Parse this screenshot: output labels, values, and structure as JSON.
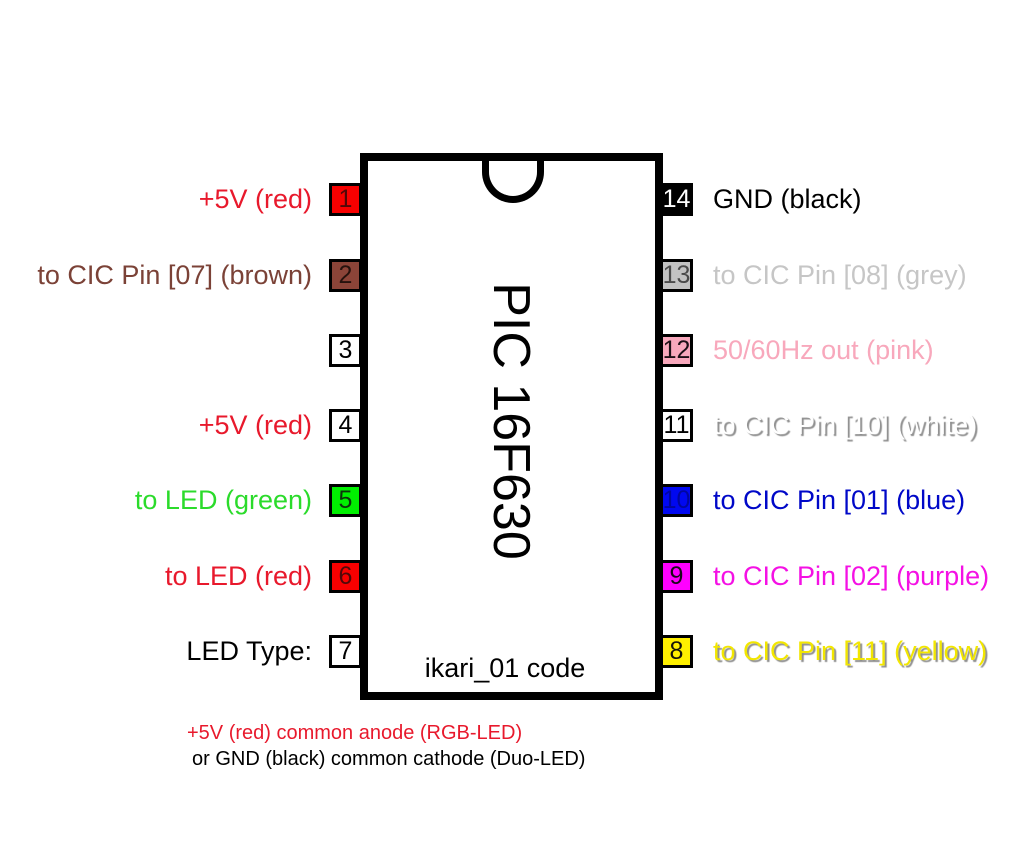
{
  "chip": {
    "title": "PIC 16F630",
    "subtitle": "ikari_01 code"
  },
  "pins": {
    "left": [
      {
        "num": "1",
        "label": "+5V (red)",
        "fill": "#f70000",
        "text_color": "#e8192c",
        "num_color": "#500808"
      },
      {
        "num": "2",
        "label": "to CIC Pin [07] (brown)",
        "fill": "#8b4438",
        "text_color": "#7b4237",
        "num_color": "#26120d"
      },
      {
        "num": "3",
        "label": "",
        "fill": "#ffffff",
        "text_color": "#000000",
        "num_color": "#000000"
      },
      {
        "num": "4",
        "label": "+5V (red)",
        "fill": "#ffffff",
        "text_color": "#e8192c",
        "num_color": "#000000"
      },
      {
        "num": "5",
        "label": "to LED (green)",
        "fill": "#00ef00",
        "text_color": "#2bdb2b",
        "num_color": "#0c330c"
      },
      {
        "num": "6",
        "label": "to LED (red)",
        "fill": "#f70000",
        "text_color": "#e8192c",
        "num_color": "#500808"
      },
      {
        "num": "7",
        "label": "LED Type:",
        "fill": "#ffffff",
        "text_color": "#000000",
        "num_color": "#000000"
      }
    ],
    "right": [
      {
        "num": "14",
        "label": "GND (black)",
        "fill": "#000000",
        "text_color": "#000000",
        "num_color": "#ffffff"
      },
      {
        "num": "13",
        "label": "to CIC Pin [08] (grey)",
        "fill": "#c2c2c2",
        "text_color": "#c6c6c6",
        "num_color": "#4a4a4a"
      },
      {
        "num": "12",
        "label": "50/60Hz out (pink)",
        "fill": "#f8a8bc",
        "text_color": "#f8a8bc",
        "num_color": "#1c1016"
      },
      {
        "num": "11",
        "label": "to CIC Pin [10] (white)",
        "fill": "#ffffff",
        "text_color": "#ffffff",
        "num_color": "#000000",
        "effect": "shadow"
      },
      {
        "num": "10",
        "label": "to CIC Pin [01] (blue)",
        "fill": "#0008f0",
        "text_color": "#0008c8",
        "num_color": "#0006a0"
      },
      {
        "num": "9",
        "label": "to CIC Pin [02] (purple)",
        "fill": "#ff00ff",
        "text_color": "#f411e4",
        "num_color": "#1a0818"
      },
      {
        "num": "8",
        "label": "to CIC Pin [11] (yellow)",
        "fill": "#fff000",
        "text_color": "#f2e600",
        "num_color": "#14140a",
        "effect": "shadow"
      }
    ]
  },
  "notes": [
    {
      "text": "+5V (red)  common anode (RGB-LED)",
      "color": "#e8192c"
    },
    {
      "text": "or GND (black) common cathode (Duo-LED)",
      "color": "#000000"
    }
  ]
}
